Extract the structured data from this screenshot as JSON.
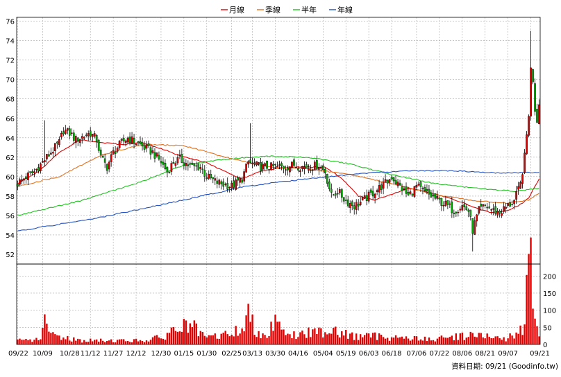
{
  "chart_data": {
    "type": "candlestick",
    "legend": {
      "placement": "top-center",
      "items": [
        {
          "name": "月線",
          "color": "#e00000"
        },
        {
          "name": "季線",
          "color": "#e07020"
        },
        {
          "name": "半年",
          "color": "#20c020"
        },
        {
          "name": "年線",
          "color": "#2050c0"
        }
      ]
    },
    "price_axis": {
      "ylim": [
        51,
        76.4
      ],
      "ticks": [
        76,
        74,
        72,
        70,
        68,
        66,
        64,
        62,
        60,
        58,
        56,
        54,
        52
      ],
      "side": "left"
    },
    "volume_axis": {
      "ylim": [
        0,
        235
      ],
      "ticks": [
        200,
        150,
        100,
        50,
        0
      ],
      "side": "right"
    },
    "x_axis": {
      "tick_labels": [
        "09/22",
        "10/09",
        "10/28",
        "11/12",
        "11/27",
        "12/12",
        "12/30",
        "01/15",
        "01/30",
        "02/25",
        "03/13",
        "03/30",
        "04/16",
        "05/04",
        "05/19",
        "06/03",
        "06/18",
        "07/06",
        "07/22",
        "08/06",
        "08/21",
        "09/07",
        "09/21"
      ],
      "tick_index": [
        0,
        12,
        25,
        35,
        46,
        57,
        69,
        80,
        91,
        103,
        113,
        124,
        135,
        147,
        158,
        169,
        180,
        192,
        203,
        214,
        225,
        236,
        247
      ]
    },
    "grid": true,
    "colors": {
      "up": "#e00000",
      "down": "#00b000",
      "volume": "#e00000",
      "grid": "#a8a8a8"
    },
    "candles": {
      "count": 252,
      "close_anchors": [
        [
          0,
          59.3
        ],
        [
          4,
          60.0
        ],
        [
          8,
          60.5
        ],
        [
          12,
          61.5
        ],
        [
          16,
          62.5
        ],
        [
          20,
          63.5
        ],
        [
          22,
          64.8
        ],
        [
          25,
          64.5
        ],
        [
          28,
          63.8
        ],
        [
          32,
          64.2
        ],
        [
          35,
          64.5
        ],
        [
          38,
          63.8
        ],
        [
          40,
          62.0
        ],
        [
          43,
          61.0
        ],
        [
          46,
          62.5
        ],
        [
          50,
          63.5
        ],
        [
          53,
          64.0
        ],
        [
          57,
          63.5
        ],
        [
          61,
          63.0
        ],
        [
          65,
          62.5
        ],
        [
          69,
          61.5
        ],
        [
          72,
          60.5
        ],
        [
          75,
          61.5
        ],
        [
          78,
          61.8
        ],
        [
          80,
          61.5
        ],
        [
          84,
          61.0
        ],
        [
          88,
          61.0
        ],
        [
          91,
          60.0
        ],
        [
          95,
          59.5
        ],
        [
          99,
          59.2
        ],
        [
          103,
          59.0
        ],
        [
          108,
          59.8
        ],
        [
          111,
          61.5
        ],
        [
          113,
          61.3
        ],
        [
          117,
          61.0
        ],
        [
          121,
          61.0
        ],
        [
          124,
          61.0
        ],
        [
          129,
          61.0
        ],
        [
          133,
          61.2
        ],
        [
          137,
          61.0
        ],
        [
          141,
          61.0
        ],
        [
          145,
          61.2
        ],
        [
          148,
          60.5
        ],
        [
          151,
          58.0
        ],
        [
          154,
          58.5
        ],
        [
          158,
          57.5
        ],
        [
          162,
          57.0
        ],
        [
          166,
          57.5
        ],
        [
          169,
          58.0
        ],
        [
          172,
          58.5
        ],
        [
          175,
          59.0
        ],
        [
          178,
          59.5
        ],
        [
          180,
          60.0
        ],
        [
          184,
          59.0
        ],
        [
          188,
          58.0
        ],
        [
          192,
          59.0
        ],
        [
          195,
          58.5
        ],
        [
          199,
          58.0
        ],
        [
          203,
          57.5
        ],
        [
          207,
          57.0
        ],
        [
          210,
          56.5
        ],
        [
          214,
          57.0
        ],
        [
          217,
          56.5
        ],
        [
          219,
          54.5
        ],
        [
          222,
          56.5
        ],
        [
          225,
          57.0
        ],
        [
          229,
          56.5
        ],
        [
          232,
          56.3
        ],
        [
          236,
          57.0
        ],
        [
          239,
          57.5
        ],
        [
          242,
          59.2
        ],
        [
          244,
          62.0
        ],
        [
          246,
          66.5
        ],
        [
          247,
          71.0
        ],
        [
          248,
          70.0
        ],
        [
          249,
          67.0
        ],
        [
          250,
          65.8
        ],
        [
          251,
          67.8
        ]
      ],
      "spikes": [
        {
          "index": 13,
          "high": 65.8
        },
        {
          "index": 112,
          "high": 65.5
        },
        {
          "index": 219,
          "low": 52.3
        },
        {
          "index": 247,
          "high": 75.0
        }
      ]
    },
    "moving_averages": [
      {
        "name": "月線",
        "anchors": [
          [
            0,
            59.3
          ],
          [
            10,
            60.5
          ],
          [
            20,
            62.5
          ],
          [
            30,
            63.8
          ],
          [
            40,
            63.5
          ],
          [
            50,
            63.3
          ],
          [
            60,
            63.5
          ],
          [
            70,
            62.8
          ],
          [
            80,
            62.0
          ],
          [
            90,
            61.5
          ],
          [
            100,
            60.5
          ],
          [
            108,
            59.8
          ],
          [
            116,
            60.5
          ],
          [
            124,
            60.8
          ],
          [
            132,
            61.0
          ],
          [
            140,
            61.0
          ],
          [
            148,
            61.0
          ],
          [
            156,
            59.8
          ],
          [
            164,
            58.0
          ],
          [
            172,
            57.6
          ],
          [
            180,
            58.2
          ],
          [
            188,
            58.8
          ],
          [
            196,
            58.5
          ],
          [
            204,
            58.0
          ],
          [
            212,
            57.5
          ],
          [
            220,
            56.8
          ],
          [
            228,
            56.3
          ],
          [
            236,
            56.5
          ],
          [
            241,
            57.0
          ],
          [
            246,
            57.8
          ],
          [
            251,
            59.8
          ]
        ]
      },
      {
        "name": "季線",
        "anchors": [
          [
            0,
            59.0
          ],
          [
            20,
            60.0
          ],
          [
            40,
            62.2
          ],
          [
            60,
            63.3
          ],
          [
            80,
            63.2
          ],
          [
            100,
            62.0
          ],
          [
            120,
            61.0
          ],
          [
            140,
            60.8
          ],
          [
            160,
            60.2
          ],
          [
            180,
            59.3
          ],
          [
            200,
            58.2
          ],
          [
            220,
            57.5
          ],
          [
            236,
            57.3
          ],
          [
            246,
            57.6
          ],
          [
            251,
            58.3
          ]
        ]
      },
      {
        "name": "半年",
        "anchors": [
          [
            0,
            56.0
          ],
          [
            30,
            57.5
          ],
          [
            60,
            59.5
          ],
          [
            80,
            61.2
          ],
          [
            100,
            61.8
          ],
          [
            120,
            62.1
          ],
          [
            140,
            62.0
          ],
          [
            160,
            61.3
          ],
          [
            180,
            60.2
          ],
          [
            200,
            59.3
          ],
          [
            220,
            58.8
          ],
          [
            240,
            58.5
          ],
          [
            251,
            58.8
          ]
        ]
      },
      {
        "name": "年線",
        "anchors": [
          [
            0,
            54.4
          ],
          [
            40,
            55.8
          ],
          [
            80,
            57.6
          ],
          [
            110,
            59.0
          ],
          [
            140,
            59.8
          ],
          [
            170,
            60.4
          ],
          [
            190,
            60.6
          ],
          [
            210,
            60.6
          ],
          [
            230,
            60.4
          ],
          [
            251,
            60.4
          ]
        ]
      }
    ],
    "volume": {
      "base": 10,
      "anchors": [
        [
          0,
          12
        ],
        [
          10,
          15
        ],
        [
          13,
          62
        ],
        [
          16,
          30
        ],
        [
          30,
          12
        ],
        [
          60,
          12
        ],
        [
          70,
          22
        ],
        [
          75,
          45
        ],
        [
          83,
          60
        ],
        [
          90,
          20
        ],
        [
          100,
          30
        ],
        [
          108,
          45
        ],
        [
          111,
          90
        ],
        [
          114,
          50
        ],
        [
          120,
          25
        ],
        [
          125,
          95
        ],
        [
          130,
          25
        ],
        [
          146,
          40
        ],
        [
          152,
          50
        ],
        [
          160,
          25
        ],
        [
          175,
          25
        ],
        [
          200,
          15
        ],
        [
          218,
          30
        ],
        [
          235,
          15
        ],
        [
          243,
          50
        ],
        [
          245,
          160
        ],
        [
          247,
          235
        ],
        [
          248,
          160
        ],
        [
          250,
          60
        ],
        [
          251,
          20
        ]
      ]
    },
    "footer": "資料日期: 09/21  (Goodinfo.tw)"
  }
}
